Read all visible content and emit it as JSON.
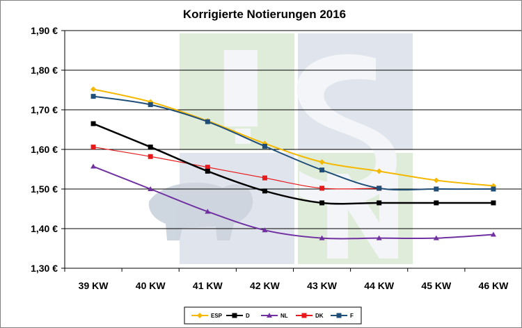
{
  "chart_data": {
    "type": "line",
    "title": "Korrigierte Notierungen 2016",
    "categories": [
      "39 KW",
      "40 KW",
      "41 KW",
      "42 KW",
      "43 KW",
      "44 KW",
      "45 KW",
      "46 KW"
    ],
    "ylim": [
      1.3,
      1.9
    ],
    "yticks": [
      1.3,
      1.4,
      1.5,
      1.6,
      1.7,
      1.8,
      1.9
    ],
    "ytick_labels": [
      "1,30 €",
      "1,40 €",
      "1,50 €",
      "1,60 €",
      "1,70 €",
      "1,80 €",
      "1,90 €"
    ],
    "grid": true,
    "legend_position": "bottom",
    "series": [
      {
        "name": "ESP",
        "color": "#F5B800",
        "marker": "diamond",
        "values": [
          1.752,
          1.72,
          1.672,
          1.615,
          1.568,
          1.545,
          1.522,
          1.508
        ]
      },
      {
        "name": "D",
        "color": "#000000",
        "marker": "square",
        "values": [
          1.665,
          1.606,
          1.545,
          1.495,
          1.465,
          1.465,
          1.465,
          1.465
        ]
      },
      {
        "name": "NL",
        "color": "#7030A0",
        "marker": "triangle",
        "values": [
          1.557,
          1.5,
          1.443,
          1.396,
          1.376,
          1.376,
          1.376,
          1.385
        ]
      },
      {
        "name": "DK",
        "color": "#E8191B",
        "marker": "square",
        "values": [
          1.606,
          1.582,
          1.555,
          1.528,
          1.502,
          1.502,
          null,
          null
        ]
      },
      {
        "name": "F",
        "color": "#1F4E79",
        "marker": "square",
        "values": [
          1.734,
          1.713,
          1.67,
          1.608,
          1.548,
          1.502,
          1.5,
          1.5
        ]
      }
    ]
  }
}
